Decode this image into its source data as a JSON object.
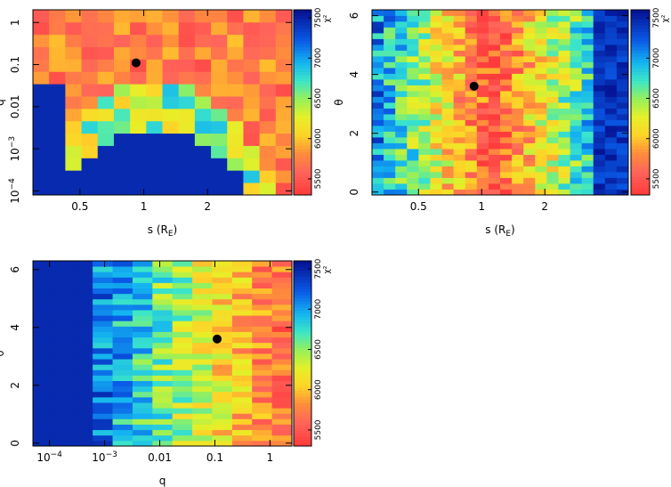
{
  "chart_data": [
    {
      "type": "heatmap",
      "id": "s-q",
      "xlabel": "s (R",
      "xlabel_sub": "E",
      "xlabel_close": ")",
      "ylabel": "q",
      "x_scale": "log",
      "y_scale": "log",
      "xlim": [
        0.3,
        5.0
      ],
      "ylim": [
        8e-05,
        2.0
      ],
      "x_ticks": [
        {
          "v": 0.5,
          "label": "0.5"
        },
        {
          "v": 1,
          "label": "1"
        },
        {
          "v": 2,
          "label": "2"
        }
      ],
      "y_ticks": [
        {
          "v": 1,
          "label": "1",
          "sup": ""
        },
        {
          "v": 0.1,
          "label": "0.1",
          "sup": ""
        },
        {
          "v": 0.01,
          "label": "0.01",
          "sup": ""
        },
        {
          "v": 0.001,
          "label": "10",
          "sup": "−3"
        },
        {
          "v": 0.0001,
          "label": "10",
          "sup": "−4"
        }
      ],
      "nx": 16,
      "ny": 15,
      "minimum": {
        "x": 0.92,
        "y": 0.11
      },
      "colorbar": {
        "label": "χ²",
        "range": [
          5300,
          7600
        ],
        "ticks": [
          "5500",
          "6000",
          "6500",
          "7000",
          "7500"
        ]
      }
    },
    {
      "type": "heatmap",
      "id": "s-theta",
      "xlabel": "s (R",
      "xlabel_sub": "E",
      "xlabel_close": ")",
      "ylabel": "θ",
      "x_scale": "log",
      "y_scale": "linear",
      "xlim": [
        0.3,
        5.0
      ],
      "ylim": [
        -0.1,
        6.2
      ],
      "x_ticks": [
        {
          "v": 0.5,
          "label": "0.5"
        },
        {
          "v": 1,
          "label": "1"
        },
        {
          "v": 2,
          "label": "2"
        }
      ],
      "y_ticks": [
        {
          "v": 0,
          "label": "0",
          "sup": ""
        },
        {
          "v": 2,
          "label": "2",
          "sup": ""
        },
        {
          "v": 4,
          "label": "4",
          "sup": ""
        },
        {
          "v": 6,
          "label": "6",
          "sup": ""
        }
      ],
      "nx": 22,
      "ny": 32,
      "minimum": {
        "x": 0.92,
        "y": 3.6
      },
      "colorbar": {
        "label": "χ²",
        "range": [
          5300,
          7600
        ],
        "ticks": [
          "5500",
          "6000",
          "6500",
          "7000",
          "7500"
        ]
      }
    },
    {
      "type": "heatmap",
      "id": "q-theta",
      "xlabel": "q",
      "xlabel_sub": "",
      "xlabel_close": "",
      "ylabel": "θ",
      "x_scale": "log",
      "y_scale": "linear",
      "xlim": [
        5e-05,
        2.5
      ],
      "ylim": [
        -0.1,
        6.3
      ],
      "x_ticks": [
        {
          "v": 0.0001,
          "label": "10",
          "sup": "−4"
        },
        {
          "v": 0.001,
          "label": "10",
          "sup": "−3"
        },
        {
          "v": 0.01,
          "label": "0.01",
          "sup": ""
        },
        {
          "v": 0.1,
          "label": "0.1",
          "sup": ""
        },
        {
          "v": 1,
          "label": "1",
          "sup": ""
        }
      ],
      "y_ticks": [
        {
          "v": 0,
          "label": "0",
          "sup": ""
        },
        {
          "v": 2,
          "label": "2",
          "sup": ""
        },
        {
          "v": 4,
          "label": "4",
          "sup": ""
        },
        {
          "v": 6,
          "label": "6",
          "sup": ""
        }
      ],
      "nx": 13,
      "ny": 34,
      "minimum": {
        "x": 0.11,
        "y": 3.6
      },
      "colorbar": {
        "label": "χ²",
        "range": [
          5300,
          7600
        ],
        "ticks": [
          "5500",
          "6000",
          "6500",
          "7000",
          "7500"
        ]
      }
    }
  ]
}
